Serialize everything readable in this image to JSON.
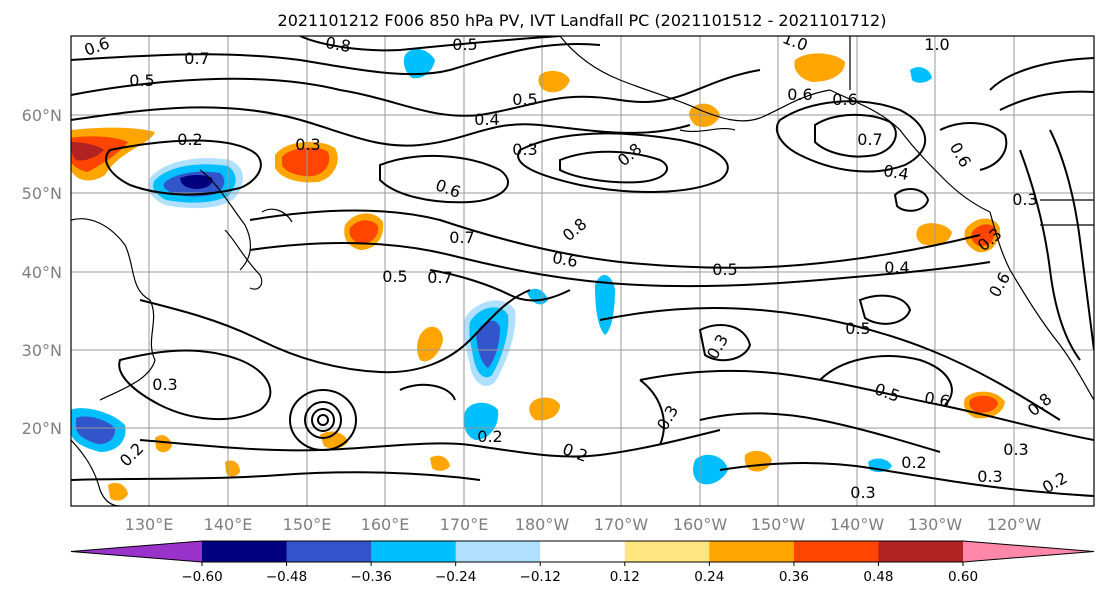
{
  "title": "2021101212 F006 850 hPa PV, IVT Landfall PC (2021101512 - 2021101712)",
  "map": {
    "lat_labels": [
      "60°N",
      "50°N",
      "40°N",
      "30°N",
      "20°N"
    ],
    "lon_labels": [
      "130°E",
      "140°E",
      "150°E",
      "160°E",
      "170°E",
      "180°W",
      "170°W",
      "160°W",
      "150°W",
      "140°W",
      "130°W",
      "120°W"
    ],
    "contour_labels": [
      "0.6",
      "0.7",
      "0.5",
      "0.8",
      "0.5",
      "0.3",
      "0.2",
      "0.6",
      "0.5",
      "0.4",
      "0.3",
      "0.8",
      "0.6",
      "1.0",
      "1.0",
      "0.6",
      "0.7",
      "0.4",
      "0.3",
      "0.3",
      "0.6",
      "0.7",
      "0.7",
      "0.8",
      "0.6",
      "0.5",
      "0.4",
      "0.5",
      "0.3",
      "0.5",
      "0.6",
      "0.3",
      "0.3",
      "0.2",
      "0.2",
      "0.2",
      "0.3",
      "0.3",
      "0.2",
      "0.5",
      "0.6",
      "0.8",
      "0.3",
      "0.2"
    ]
  },
  "colorbar": {
    "colors": [
      "#9933cc",
      "#00007f",
      "#3355cc",
      "#00bfff",
      "#b0e0ff",
      "#ffffff",
      "#ffe680",
      "#ffa500",
      "#ff4500",
      "#b22222",
      "#ff88aa"
    ],
    "tick_labels": [
      "−0.60",
      "−0.48",
      "−0.36",
      "−0.24",
      "−0.12",
      "0.12",
      "0.24",
      "0.36",
      "0.48",
      "0.60"
    ]
  }
}
